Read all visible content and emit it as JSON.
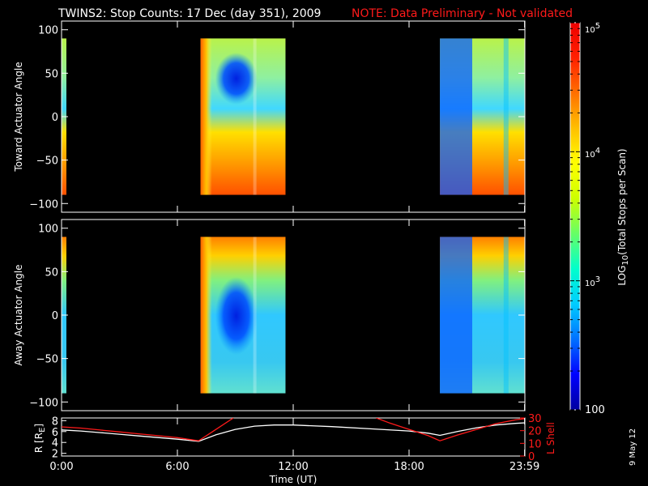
{
  "chart_data": [
    {
      "type": "heatmap",
      "title": "TWINS2: Stop Counts: 17 Dec (day 351), 2009",
      "note": "NOTE: Data Preliminary - Not validated",
      "ylabel": "Toward Actuator Angle",
      "xlim": [
        0,
        24
      ],
      "ylim": [
        -110,
        110
      ],
      "yticks": [
        "100",
        "50",
        "0",
        "−50",
        "−100"
      ],
      "ytick_values": [
        100,
        50,
        0,
        -50,
        -100
      ],
      "data_segments": [
        {
          "start": 0.0,
          "end": 0.25
        },
        {
          "start": 7.2,
          "end": 11.6
        },
        {
          "start": 19.6,
          "end": 24.0
        }
      ],
      "angle_range": [
        -90,
        90
      ]
    },
    {
      "type": "heatmap",
      "ylabel": "Away Actuator Angle",
      "xlim": [
        0,
        24
      ],
      "ylim": [
        -110,
        110
      ],
      "yticks": [
        "100",
        "50",
        "0",
        "−50",
        "−100"
      ],
      "ytick_values": [
        100,
        50,
        0,
        -50,
        -100
      ],
      "data_segments": [
        {
          "start": 0.0,
          "end": 0.25
        },
        {
          "start": 7.2,
          "end": 11.6
        },
        {
          "start": 19.6,
          "end": 24.0
        }
      ],
      "angle_range": [
        -90,
        90
      ]
    },
    {
      "type": "line",
      "xlabel": "Time (UT)",
      "xlim": [
        0,
        24
      ],
      "xticks": [
        "0:00",
        "6:00",
        "12:00",
        "18:00",
        "23:59"
      ],
      "xtick_values": [
        0,
        6,
        12,
        18,
        23.983
      ],
      "ylabel_left": "R [R",
      "ylabel_left_sub": "E",
      "ylabel_left_close": "]",
      "ylim_left": [
        1.5,
        8.5
      ],
      "yticks_left": [
        "2",
        "4",
        "6",
        "8"
      ],
      "ytick_left_values": [
        2,
        4,
        6,
        8
      ],
      "ylabel_right": "L Shell",
      "ylim_right": [
        0,
        30
      ],
      "yticks_right": [
        "0",
        "10",
        "20",
        "30"
      ],
      "ytick_right_values": [
        0,
        10,
        20,
        30
      ],
      "series": [
        {
          "axis": "left",
          "color": "#ffffff",
          "x": [
            0,
            1,
            2,
            3,
            4,
            5,
            6,
            7.1,
            8,
            9,
            10,
            11,
            12,
            14,
            16,
            18,
            19,
            19.6,
            20.5,
            21.5,
            22.5,
            23.5,
            24
          ],
          "y": [
            6.3,
            6.1,
            5.8,
            5.5,
            5.2,
            4.9,
            4.6,
            4.2,
            5.4,
            6.4,
            7.0,
            7.2,
            7.2,
            6.9,
            6.5,
            6.1,
            5.7,
            5.3,
            6.0,
            6.7,
            7.2,
            7.5,
            7.6
          ]
        },
        {
          "axis": "right",
          "color": "#ff1a1a",
          "segments": [
            {
              "x": [
                0,
                1,
                2,
                3,
                4,
                5,
                6,
                7.1,
                8,
                8.9
              ],
              "y": [
                23,
                22,
                20.5,
                19,
                17.5,
                16,
                14.5,
                12,
                21,
                30
              ]
            },
            {
              "x": [
                16.3,
                17,
                18,
                19,
                19.6,
                20.5,
                21.5,
                22.5,
                23.5,
                24
              ],
              "y": [
                30,
                26,
                21,
                16,
                12,
                16.5,
                21,
                25.5,
                28.5,
                29.5
              ]
            }
          ]
        }
      ]
    }
  ],
  "colorbar": {
    "label_prefix": "LOG",
    "label_sub": "10",
    "label_suffix": "(Total Stops per Scan)",
    "range": [
      100,
      100000
    ],
    "tick_top_base": "10",
    "tick_top_exp": "5",
    "tick_mid_base": "10",
    "tick_mid_exp": "4",
    "tick_low_base": "10",
    "tick_low_exp": "3",
    "tick_bottom": "100",
    "colors": [
      "#0000a0",
      "#0000ff",
      "#0070ff",
      "#00ccff",
      "#00ffcc",
      "#66ff66",
      "#ccff00",
      "#ffff00",
      "#ffc000",
      "#ff7000",
      "#ff2000",
      "#ee0000"
    ]
  },
  "footer": {
    "date_stamp": "9 May 12"
  }
}
